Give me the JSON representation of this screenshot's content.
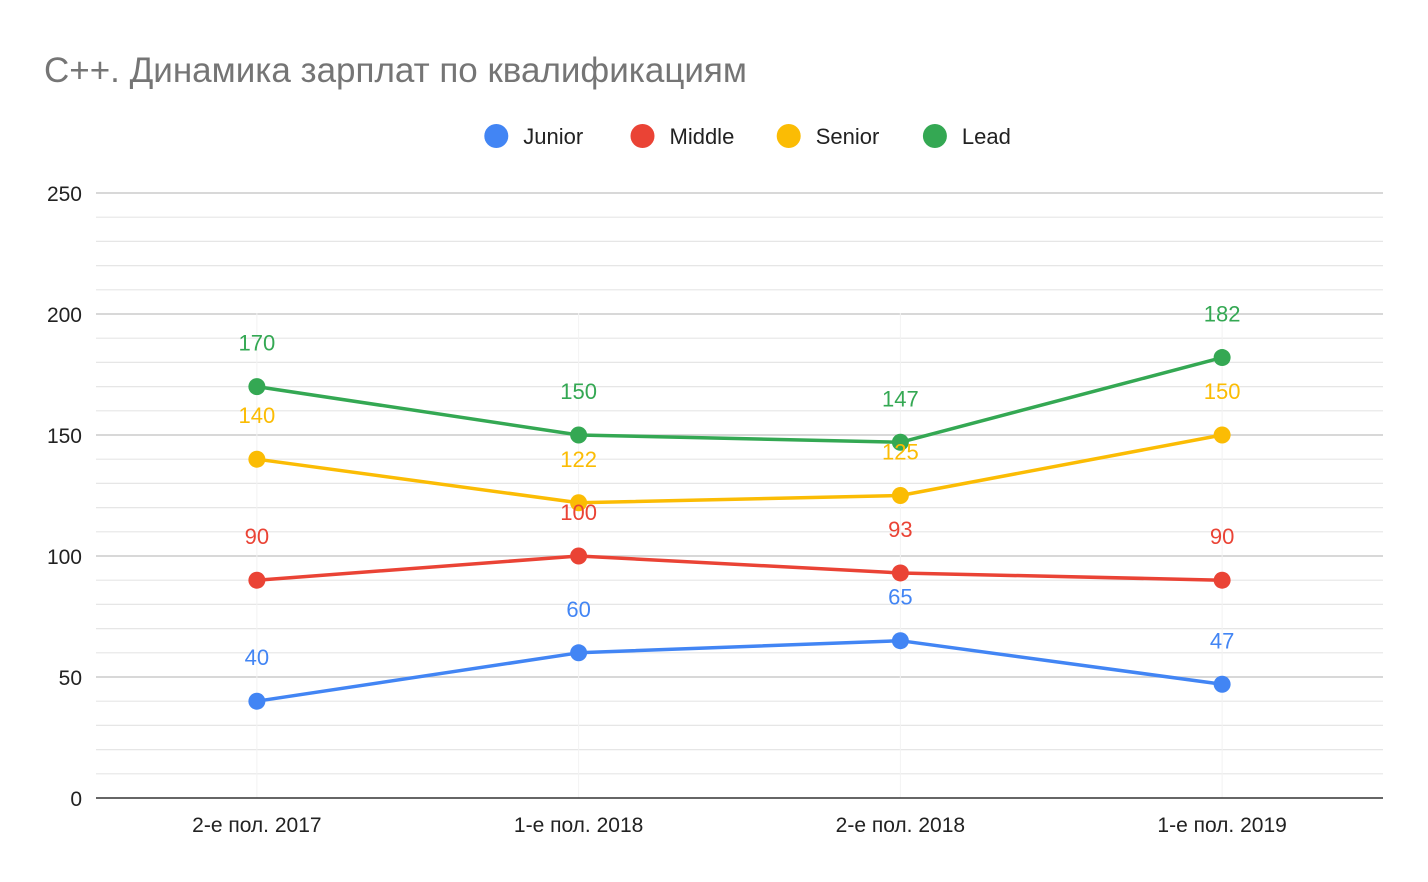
{
  "chart_data": {
    "type": "line",
    "title": "C++. Динамика зарплат по квалификациям",
    "xlabel": "",
    "ylabel": "",
    "categories": [
      "2-е пол. 2017",
      "1-е пол. 2018",
      "2-е пол. 2018",
      "1-е пол. 2019"
    ],
    "ylim": [
      0,
      250
    ],
    "y_ticks": [
      0,
      50,
      100,
      150,
      200,
      250
    ],
    "grid": true,
    "legend_position": "top-center",
    "data_labels": true,
    "series": [
      {
        "name": "Junior",
        "color": "#4285F4",
        "values": [
          40,
          60,
          65,
          47
        ]
      },
      {
        "name": "Middle",
        "color": "#EA4335",
        "values": [
          90,
          100,
          93,
          90
        ]
      },
      {
        "name": "Senior",
        "color": "#FBBC04",
        "values": [
          140,
          122,
          125,
          150
        ]
      },
      {
        "name": "Lead",
        "color": "#34A853",
        "values": [
          170,
          150,
          147,
          182
        ]
      }
    ]
  }
}
